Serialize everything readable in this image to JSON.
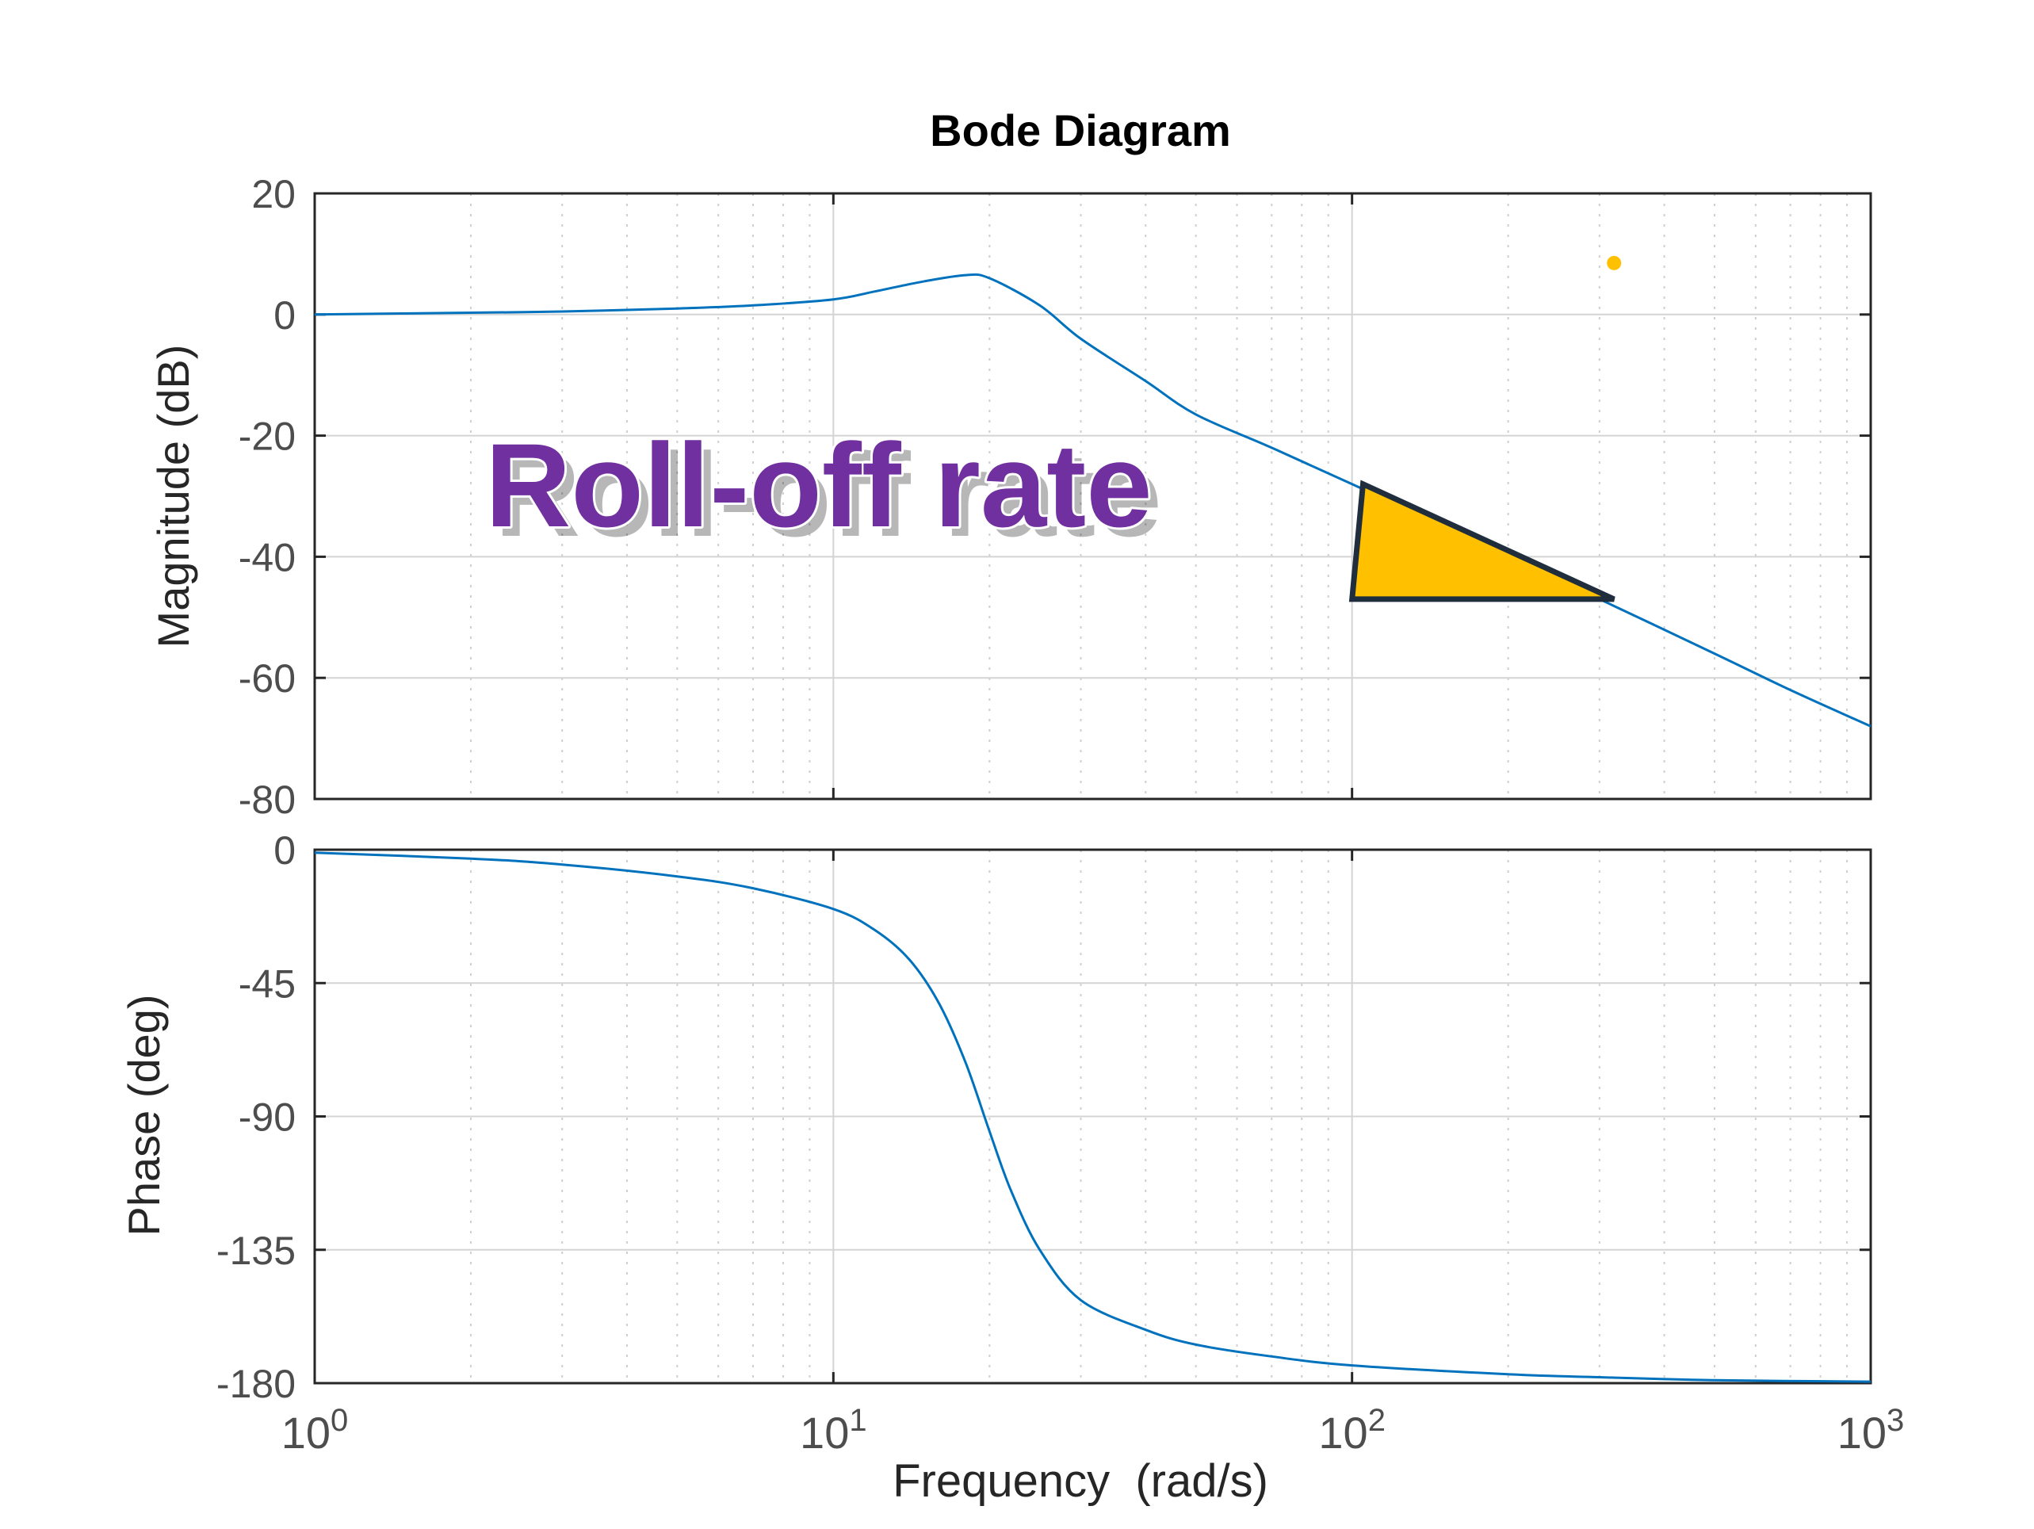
{
  "chart_data": {
    "type": "line",
    "title": "Bode Diagram",
    "xlabel": "Frequency  (rad/s)",
    "x_scale": "log",
    "xlim": [
      1,
      1000
    ],
    "x_tick_labels": [
      {
        "base": "10",
        "exp": "0"
      },
      {
        "base": "10",
        "exp": "1"
      },
      {
        "base": "10",
        "exp": "2"
      },
      {
        "base": "10",
        "exp": "3"
      }
    ],
    "grid": true,
    "series_color": "#0072BD",
    "panels": [
      {
        "name": "magnitude",
        "ylabel": "Magnitude (dB)",
        "ylim": [
          -80,
          20
        ],
        "yticks": [
          20,
          0,
          -20,
          -40,
          -60,
          -80
        ],
        "ytick_labels": [
          "20",
          "0",
          "-20",
          "-40",
          "-60",
          "-80"
        ],
        "x": [
          1,
          2,
          3,
          5,
          7,
          10,
          12,
          15,
          18,
          20,
          25,
          30,
          40,
          50,
          70,
          100,
          150,
          200,
          300,
          500,
          700,
          1000
        ],
        "y": [
          0,
          0.3,
          0.5,
          1,
          1.5,
          2.5,
          3.8,
          5.5,
          6.5,
          6,
          1.5,
          -4,
          -11,
          -16.5,
          -22,
          -28,
          -35,
          -40,
          -47,
          -56,
          -62,
          -68
        ]
      },
      {
        "name": "phase",
        "ylabel": "Phase (deg)",
        "ylim": [
          -180,
          0
        ],
        "yticks": [
          0,
          -45,
          -90,
          -135,
          -180
        ],
        "ytick_labels": [
          "0",
          "-45",
          "-90",
          "-135",
          "-180"
        ],
        "x": [
          1,
          2,
          3,
          5,
          7,
          10,
          12,
          14,
          16,
          18,
          20,
          22,
          25,
          30,
          40,
          50,
          70,
          100,
          200,
          300,
          500,
          1000
        ],
        "y": [
          -1,
          -3,
          -5,
          -9,
          -13,
          -20,
          -27,
          -37,
          -52,
          -72,
          -95,
          -115,
          -135,
          -152,
          -162,
          -167,
          -171,
          -174,
          -177,
          -178,
          -179,
          -179.5
        ]
      }
    ],
    "annotations": [
      {
        "text": "Roll-off rate",
        "color": "#7030A0"
      },
      {
        "type": "slope-triangle",
        "color": "#FFC000",
        "outline": "#1f2d3d",
        "vertices_data": [
          [
            105,
            -28
          ],
          [
            100,
            -47
          ],
          [
            320,
            -47
          ]
        ]
      },
      {
        "type": "dot",
        "color": "#FFC000",
        "x_data": 320,
        "y_data": 8.5
      }
    ]
  }
}
